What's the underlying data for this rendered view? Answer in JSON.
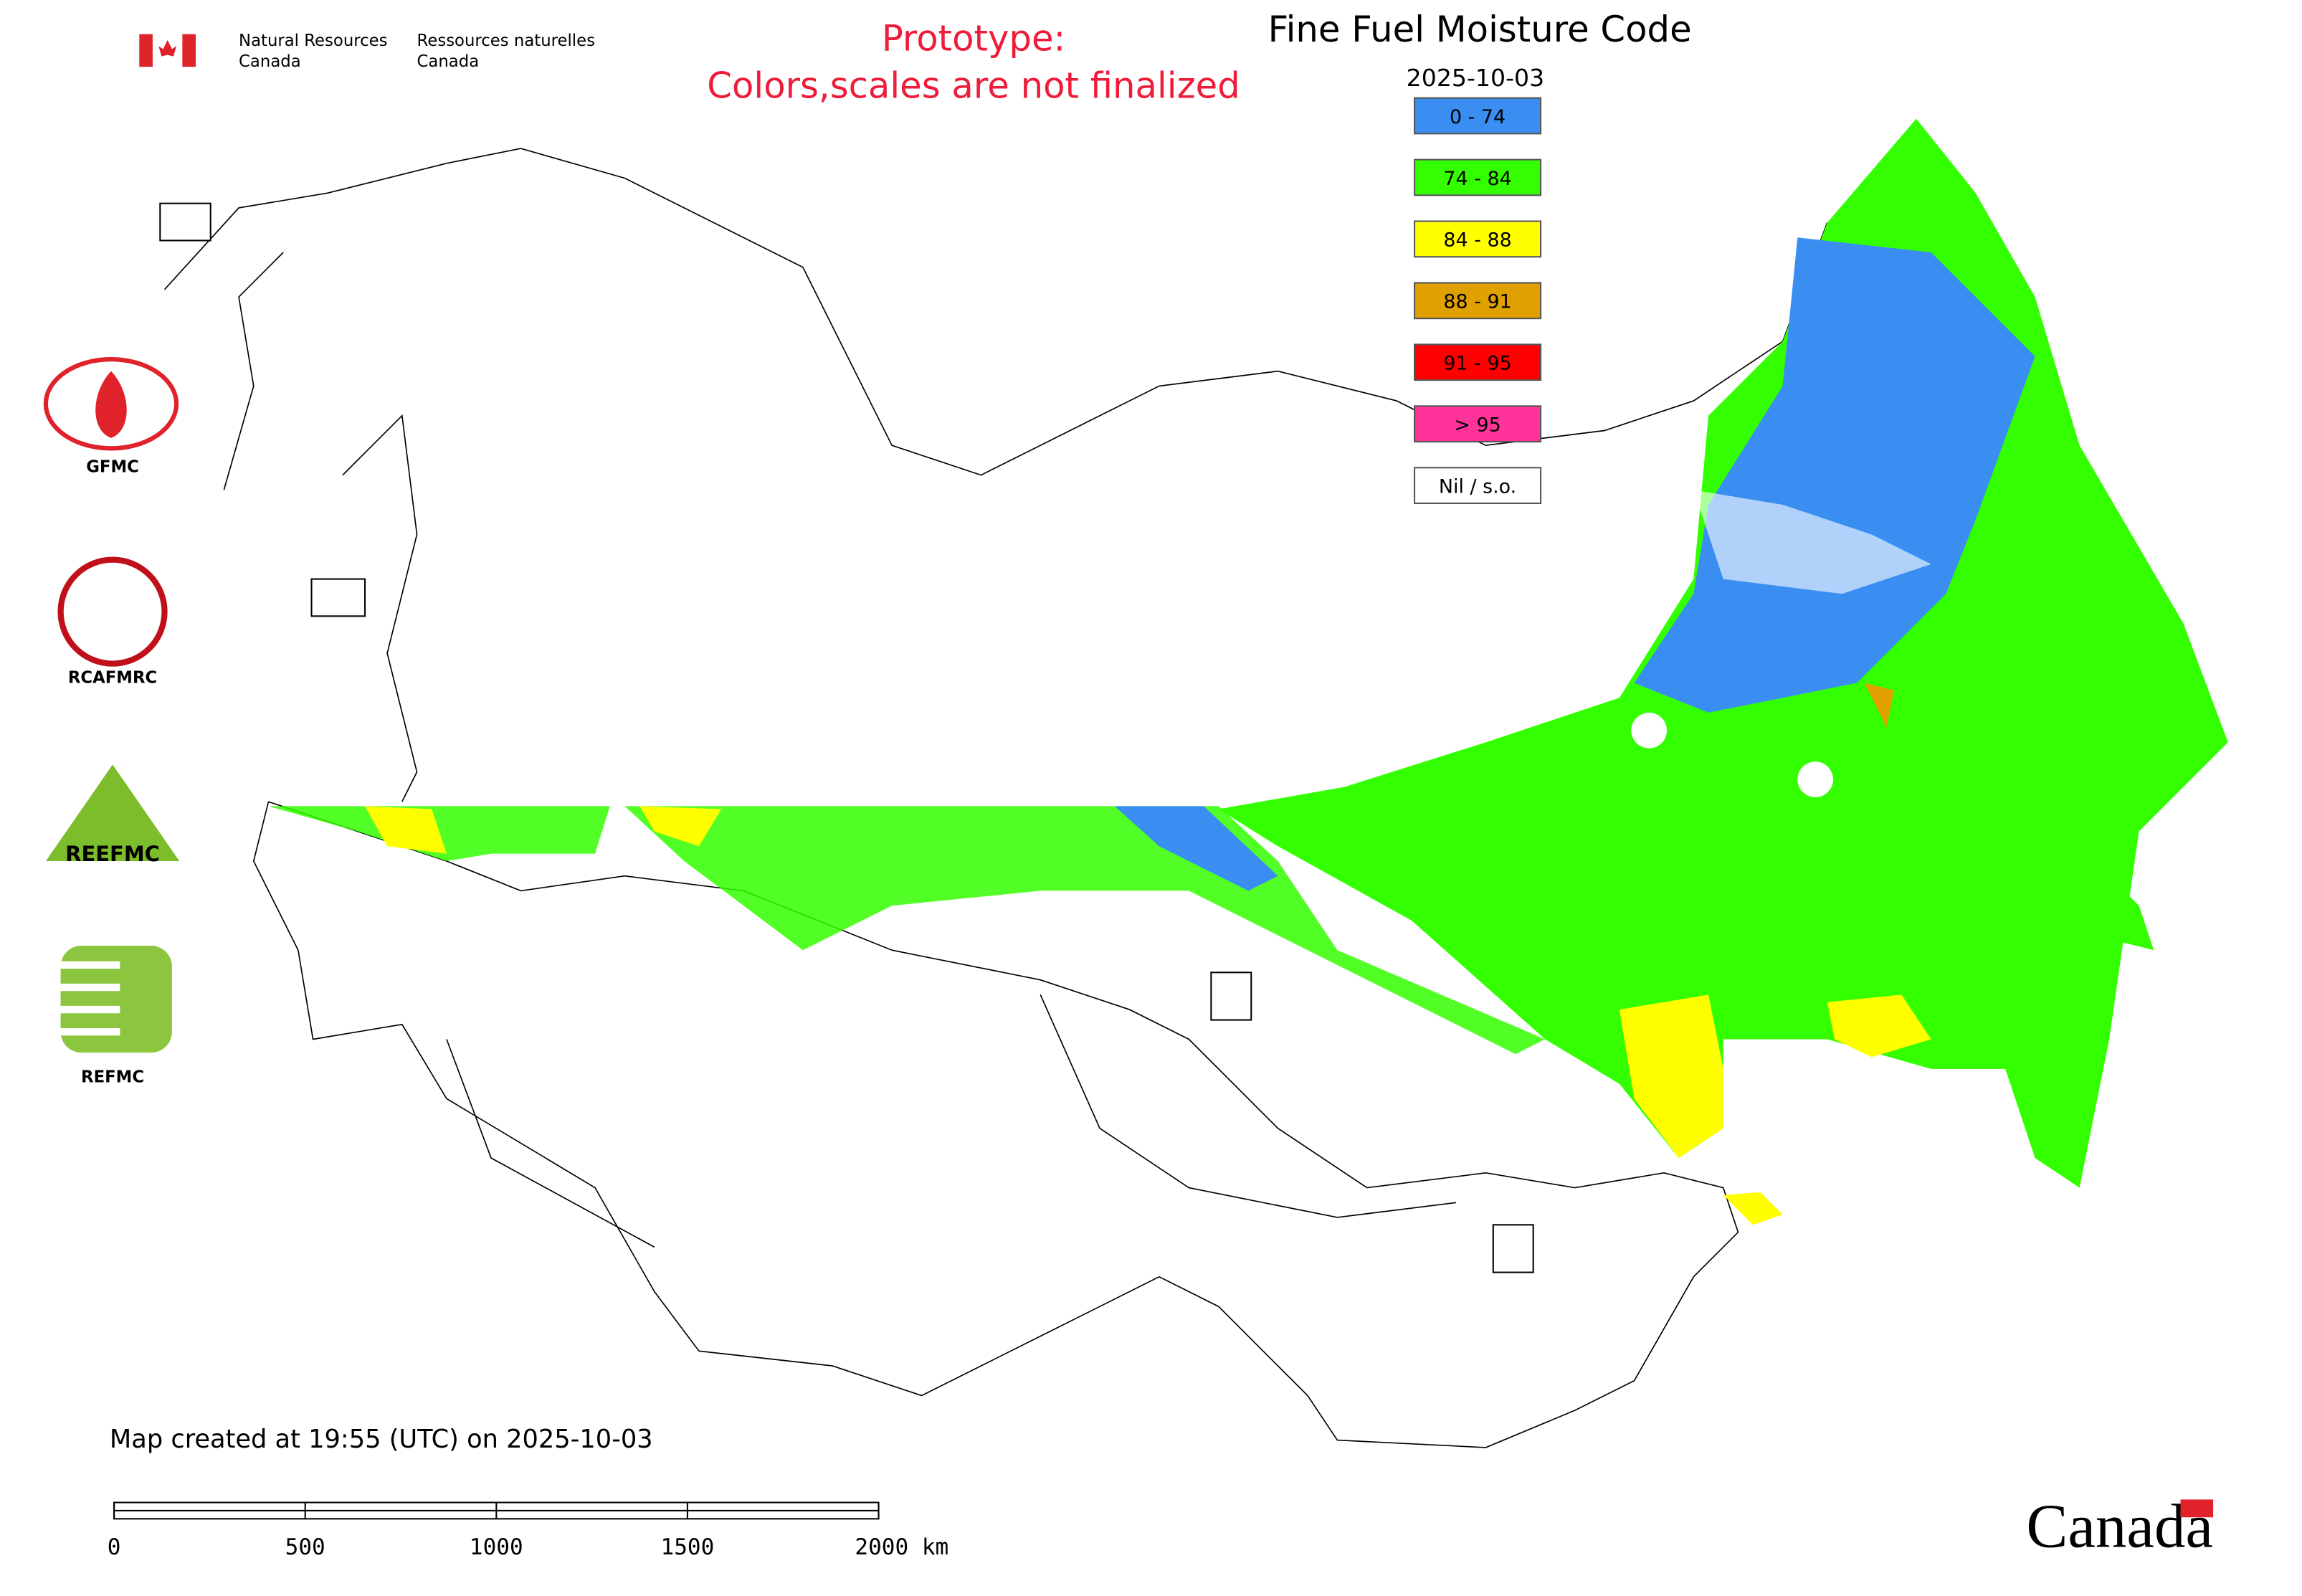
{
  "header": {
    "department_en": [
      "Natural Resources",
      "Canada"
    ],
    "department_fr": [
      "Ressources naturelles",
      "Canada"
    ],
    "notice": [
      "Prototype:",
      "Colors,scales are not finalized"
    ]
  },
  "map": {
    "title": "Fine Fuel Moisture Code",
    "date": "2025-10-03",
    "legend": [
      {
        "label": "0 - 74",
        "color": "#3a8ef2"
      },
      {
        "label": "74 - 84",
        "color": "#33ff00"
      },
      {
        "label": "84 - 88",
        "color": "#ffff00"
      },
      {
        "label": "88 - 91",
        "color": "#e0a000"
      },
      {
        "label": "91 - 95",
        "color": "#ff0000"
      },
      {
        "label": "> 95",
        "color": "#ff3399"
      },
      {
        "label": "Nil / s.o.",
        "color": "#ffffff"
      }
    ],
    "created": "Map created at 19:55 (UTC) on 2025-10-03",
    "scale_labels": [
      "0",
      "500",
      "1000",
      "1500",
      "2000 km"
    ]
  },
  "logos": [
    "GFMC",
    "RCAFMRC",
    "REEFMC",
    "REFMC"
  ],
  "wordmark": "Canada"
}
